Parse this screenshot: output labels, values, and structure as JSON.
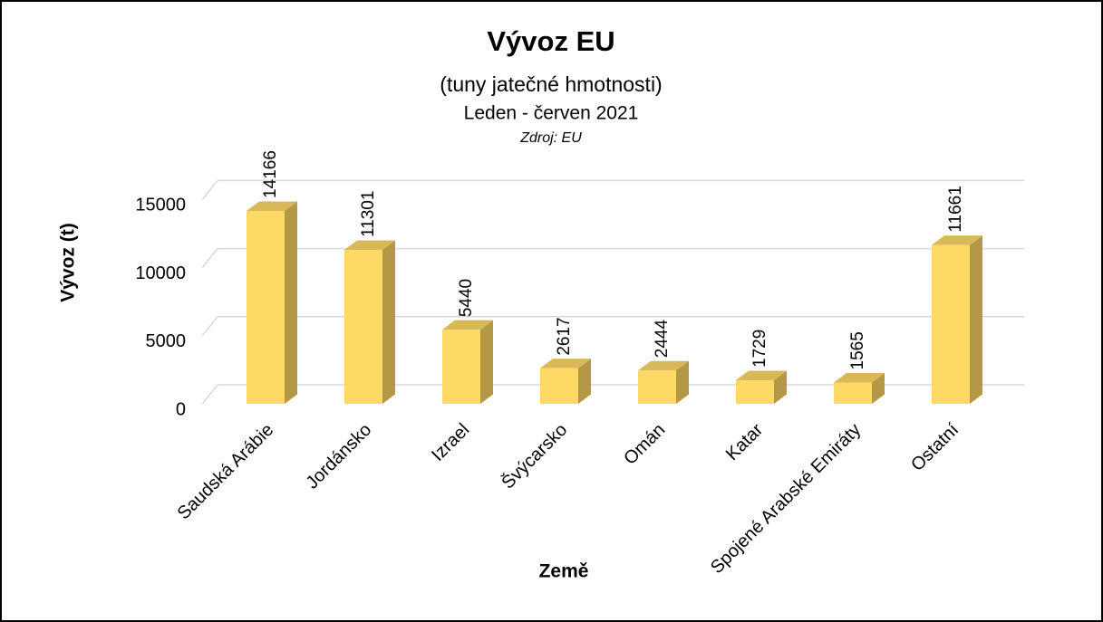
{
  "chart_data": {
    "type": "bar3d",
    "title": "Vývoz EU",
    "subtitle": "(tuny jatečné hmotnosti)",
    "period": "Leden - červen 2021",
    "source": "Zdroj: EU",
    "x_label": "Země",
    "y_label": "Vývoz (t)",
    "categories": [
      "Saudská Arábie",
      "Jordánsko",
      "Izrael",
      "Švýcarsko",
      "Omán",
      "Katar",
      "Spojené Arabské Emiráty",
      "Ostatní"
    ],
    "values": [
      14166,
      11301,
      5440,
      2617,
      2444,
      1729,
      1565,
      11661
    ],
    "color": "#FFD966",
    "ylim": [
      0,
      15000
    ],
    "yticks": [
      0,
      5000,
      10000,
      15000
    ],
    "grid": true
  }
}
